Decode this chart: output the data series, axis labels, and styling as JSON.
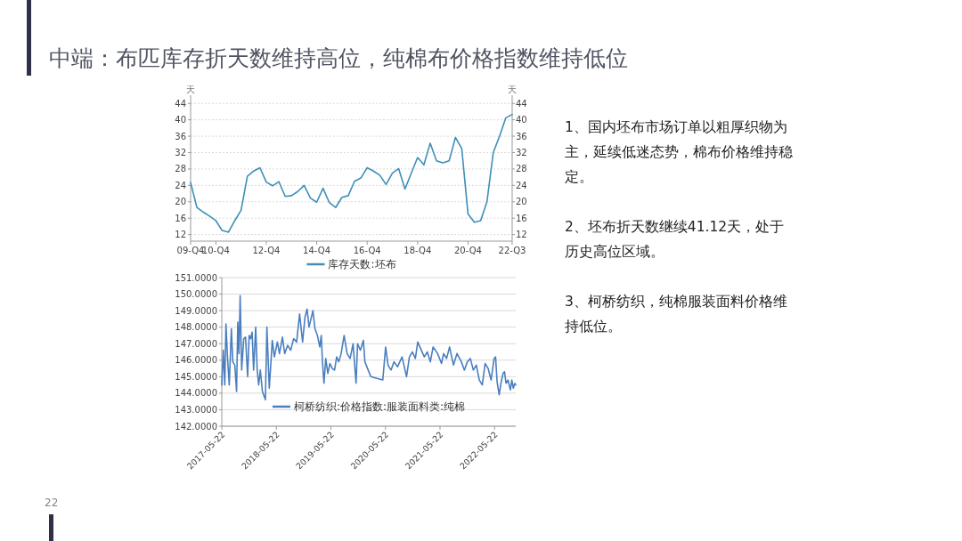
{
  "chart_data": [
    {
      "type": "line",
      "ylabel": "天",
      "y2label": "天",
      "categories": [
        "09-Q4",
        null,
        null,
        null,
        "10-Q4",
        null,
        null,
        null,
        null,
        null,
        null,
        null,
        "12-Q4",
        null,
        null,
        null,
        null,
        null,
        null,
        null,
        "14-Q4",
        null,
        null,
        null,
        null,
        null,
        null,
        null,
        "16-Q4",
        null,
        null,
        null,
        null,
        null,
        null,
        null,
        "18-Q4",
        null,
        null,
        null,
        null,
        null,
        null,
        null,
        "20-Q4",
        null,
        null,
        null,
        null,
        null,
        null,
        "22-Q3"
      ],
      "ylim": [
        10.4,
        46
      ],
      "yticks": [
        12,
        16,
        20,
        24,
        28,
        32,
        36,
        40,
        44
      ],
      "y2lim": [
        10.4,
        46
      ],
      "y2ticks": [
        12,
        16,
        20,
        24,
        28,
        32,
        36,
        40,
        44
      ],
      "grid": "y",
      "legend": "bottom",
      "series": [
        {
          "name": "库存天数:坯布",
          "color": "#3d8fb8",
          "values": [
            24.7,
            18.6,
            17.5,
            16.5,
            15.4,
            13.0,
            12.6,
            15.4,
            17.9,
            26.2,
            27.5,
            28.3,
            24.8,
            23.9,
            24.9,
            21.3,
            21.5,
            22.5,
            24.0,
            20.9,
            19.9,
            23.3,
            19.8,
            18.6,
            21.1,
            21.5,
            25.0,
            25.8,
            28.3,
            27.5,
            26.5,
            24.2,
            27.0,
            28.1,
            23.1,
            27.0,
            30.8,
            29.0,
            34.3,
            30.0,
            29.5,
            30.0,
            35.7,
            33.0,
            17.0,
            15.0,
            15.4,
            20.0,
            32.0,
            36.0,
            40.5,
            41.3
          ]
        }
      ]
    },
    {
      "type": "line",
      "xlim": [
        "2017-05-22",
        "2022-10-11"
      ],
      "xticks": [
        "2017-05-22",
        "2018-05-22",
        "2019-05-22",
        "2020-05-22",
        "2021-05-22",
        "2022-05-22"
      ],
      "ylim": [
        142,
        151
      ],
      "yticks": [
        {
          "value": 142,
          "label": "142.0000"
        },
        {
          "value": 143,
          "label": "143.0000"
        },
        {
          "value": 144,
          "label": "144.0000"
        },
        {
          "value": 145,
          "label": "145.0000"
        },
        {
          "value": 146,
          "label": "146.0000"
        },
        {
          "value": 147,
          "label": "147.0000"
        },
        {
          "value": 148,
          "label": "148.0000"
        },
        {
          "value": 149,
          "label": "149.0000"
        },
        {
          "value": 150,
          "label": "150.0000"
        },
        {
          "value": 151,
          "label": "151.0000"
        }
      ],
      "grid": "y",
      "legend": "bottom",
      "series": [
        {
          "name": "柯桥纺织:价格指数:服装面料类:纯棉",
          "color": "#4a7ebf",
          "x": [
            "2017-05-22",
            "2017-06-01",
            "2017-06-11",
            "2017-06-19",
            "2017-06-29",
            "2017-07-11",
            "2017-07-25",
            "2017-08-04",
            "2017-08-17",
            "2017-08-29",
            "2017-09-06",
            "2017-09-14",
            "2017-09-22",
            "2017-10-02",
            "2017-10-16",
            "2017-10-28",
            "2017-11-11",
            "2017-11-21",
            "2017-12-01",
            "2017-12-11",
            "2017-12-21",
            "2018-01-04",
            "2018-01-14",
            "2018-01-24",
            "2018-02-04",
            "2018-02-18",
            "2018-03-10",
            "2018-03-20",
            "2018-04-05",
            "2018-04-25",
            "2018-05-09",
            "2018-05-29",
            "2018-06-12",
            "2018-07-02",
            "2018-07-17",
            "2018-08-06",
            "2018-08-26",
            "2018-09-15",
            "2018-10-05",
            "2018-10-25",
            "2018-11-14",
            "2018-11-30",
            "2018-12-14",
            "2018-12-27",
            "2019-01-22",
            "2019-02-05",
            "2019-02-21",
            "2019-03-09",
            "2019-03-19",
            "2019-03-27",
            "2019-04-06",
            "2019-04-18",
            "2019-05-02",
            "2019-05-16",
            "2019-06-01",
            "2019-06-16",
            "2019-06-30",
            "2019-07-14",
            "2019-07-30",
            "2019-08-19",
            "2019-09-08",
            "2019-09-28",
            "2019-10-18",
            "2019-11-07",
            "2019-11-17",
            "2019-12-06",
            "2019-12-26",
            "2020-01-05",
            "2020-02-14",
            "2020-03-25",
            "2020-05-04",
            "2020-05-23",
            "2020-06-08",
            "2020-06-28",
            "2020-07-18",
            "2020-08-11",
            "2020-09-10",
            "2020-10-10",
            "2020-10-29",
            "2020-11-18",
            "2020-12-08",
            "2020-12-24",
            "2021-01-17",
            "2021-02-06",
            "2021-02-26",
            "2021-03-18",
            "2021-04-06",
            "2021-05-06",
            "2021-06-01",
            "2021-06-15",
            "2021-07-05",
            "2021-07-25",
            "2021-08-20",
            "2021-09-13",
            "2021-10-12",
            "2021-11-01",
            "2021-11-21",
            "2021-12-11",
            "2021-12-31",
            "2022-01-20",
            "2022-02-09",
            "2022-03-01",
            "2022-03-20",
            "2022-04-09",
            "2022-04-29",
            "2022-05-19",
            "2022-05-29",
            "2022-06-08",
            "2022-06-22",
            "2022-07-04",
            "2022-07-18",
            "2022-07-28",
            "2022-08-07",
            "2022-08-20",
            "2022-09-05",
            "2022-09-15",
            "2022-09-25",
            "2022-10-05",
            "2022-10-11"
          ],
          "values": [
            144.5,
            146.6,
            144.5,
            148.2,
            146.2,
            144.5,
            147.9,
            145.9,
            145.7,
            144.1,
            148.3,
            146.4,
            149.9,
            145.4,
            147.3,
            147.4,
            145.0,
            147.5,
            147.3,
            147.7,
            145.4,
            148.0,
            145.4,
            144.5,
            145.4,
            144.1,
            143.6,
            148.0,
            144.3,
            147.2,
            146.2,
            147.1,
            146.4,
            147.4,
            146.4,
            146.9,
            146.6,
            147.3,
            147.1,
            148.8,
            147.1,
            148.6,
            149.1,
            148.0,
            149.0,
            147.9,
            147.5,
            146.8,
            147.5,
            145.9,
            144.6,
            146.1,
            145.2,
            145.8,
            145.5,
            145.4,
            146.2,
            145.9,
            146.4,
            147.5,
            146.4,
            146.1,
            147.0,
            144.6,
            147.0,
            146.6,
            147.2,
            145.9,
            145.0,
            144.9,
            144.8,
            146.8,
            145.7,
            145.4,
            145.9,
            145.6,
            146.2,
            145.0,
            146.2,
            146.5,
            146.1,
            147.1,
            146.6,
            146.2,
            146.5,
            145.9,
            146.8,
            146.4,
            145.8,
            146.4,
            146.1,
            146.8,
            145.7,
            146.4,
            145.9,
            145.4,
            145.9,
            146.1,
            145.4,
            145.7,
            144.8,
            144.5,
            145.8,
            145.5,
            144.8,
            146.1,
            146.2,
            144.7,
            143.9,
            144.6,
            145.2,
            145.3,
            144.6,
            144.8,
            144.2,
            144.8,
            144.3,
            144.6,
            144.5
          ]
        }
      ]
    },
    {
      "type": "other",
      "title": "中端：布匹库存折天数维持高位，纯棉布价格指数维持低位",
      "annotations": [
        "1、国内坯布市场订单以粗厚织物为主，延续低迷态势，棉布价格维持稳定。",
        "2、坯布折天数继续41.12天，处于历史高位区域。",
        "3、柯桥纺织，纯棉服装面料价格维持低位。",
        "22"
      ]
    }
  ]
}
